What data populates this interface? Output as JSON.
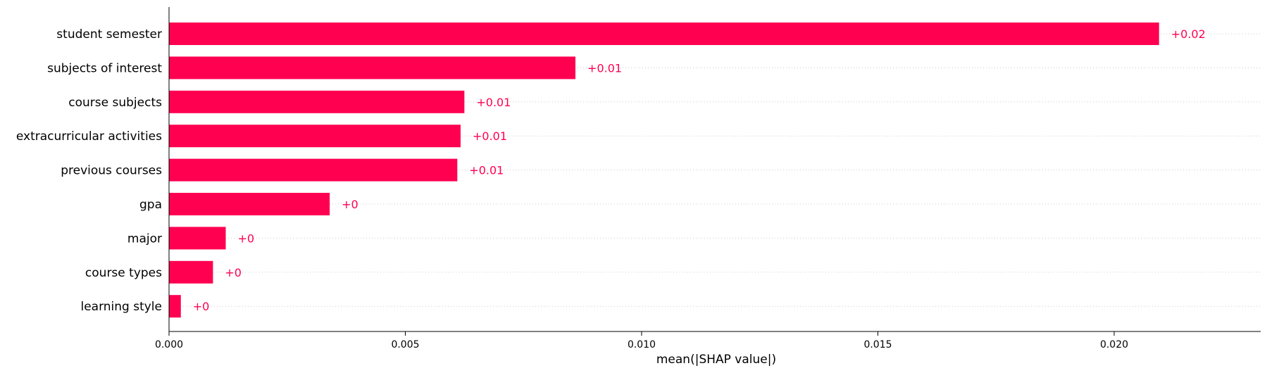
{
  "chart_data": {
    "type": "bar",
    "orientation": "horizontal",
    "categories": [
      "student semester",
      "subjects of interest",
      "course subjects",
      "extracurricular activities",
      "previous courses",
      "gpa",
      "major",
      "course types",
      "learning style"
    ],
    "values": [
      0.02095,
      0.0086,
      0.00625,
      0.00617,
      0.0061,
      0.0034,
      0.0012,
      0.00093,
      0.00025
    ],
    "value_labels": [
      "+0.02",
      "+0.01",
      "+0.01",
      "+0.01",
      "+0.01",
      "+0",
      "+0",
      "+0",
      "+0"
    ],
    "xlabel": "mean(|SHAP value|)",
    "xticks": [
      0.0,
      0.005,
      0.01,
      0.015,
      0.02
    ],
    "xtick_labels": [
      "0.000",
      "0.005",
      "0.010",
      "0.015",
      "0.020"
    ],
    "xlim": [
      0,
      0.0231
    ],
    "bar_color": "#ff0051",
    "grid": "dotted horizontal guide lines per row"
  }
}
